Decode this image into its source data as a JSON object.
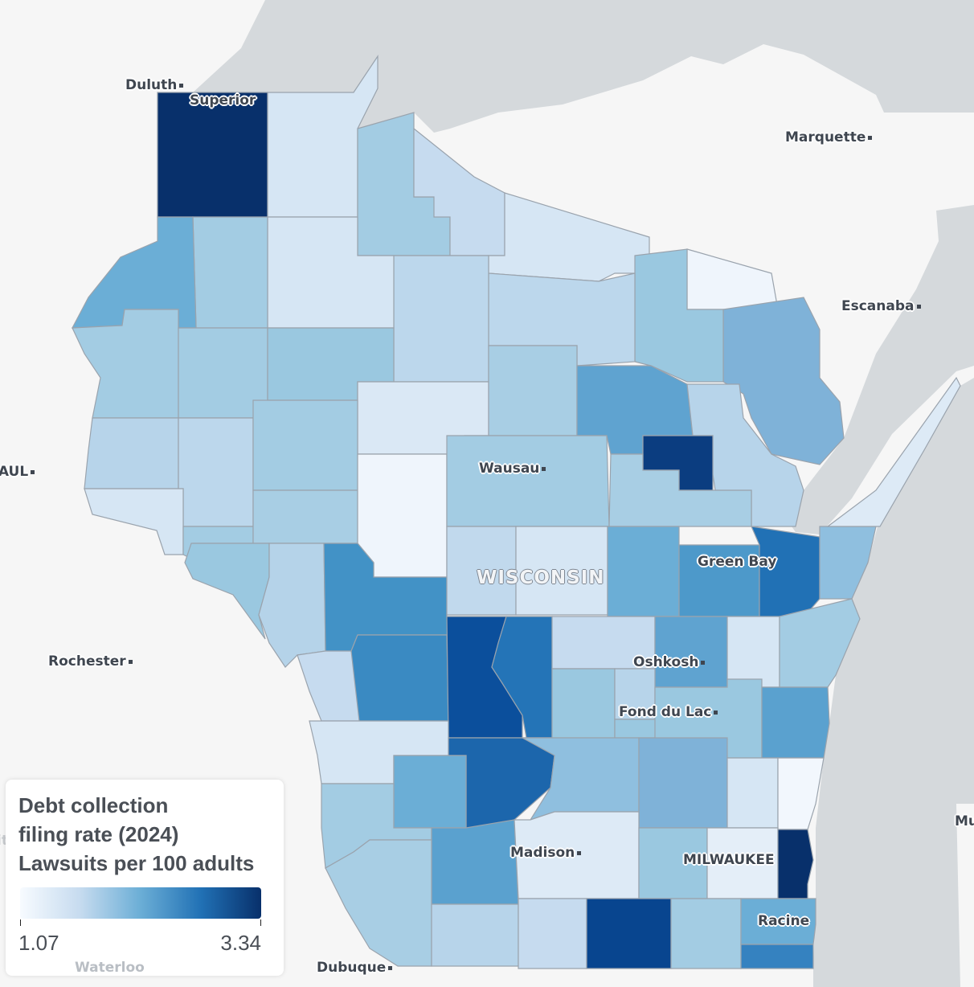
{
  "map": {
    "place_labels": {
      "duluth": "Duluth",
      "superior": "Superior",
      "marquette": "Marquette",
      "escanaba": "Escanaba",
      "st_paul": "PAUL",
      "rochester": "Rochester",
      "wausau": "Wausau",
      "state": "WISCONSIN",
      "green_bay": "Green Bay",
      "oshkosh": "Oshkosh",
      "fond_du_lac": "Fond du Lac",
      "madison": "Madison",
      "milwaukee": "MILWAUKEE",
      "racine": "Racine",
      "dubuque": "Dubuque",
      "waterloo": "Waterloo",
      "muskegon_partial": "Mu",
      "city_partial": "ity"
    },
    "colors": {
      "land": "#f6f6f6",
      "water": "#d5d9dc",
      "county_border": "#9aa3ad"
    }
  },
  "legend": {
    "title_lines": [
      "Debt collection",
      "filing rate (2024)",
      "Lawsuits per 100 adults"
    ],
    "min": "1.07",
    "max": "3.34",
    "color_min": "#f7fbff",
    "color_max": "#08306b",
    "scale": "Blues"
  }
}
